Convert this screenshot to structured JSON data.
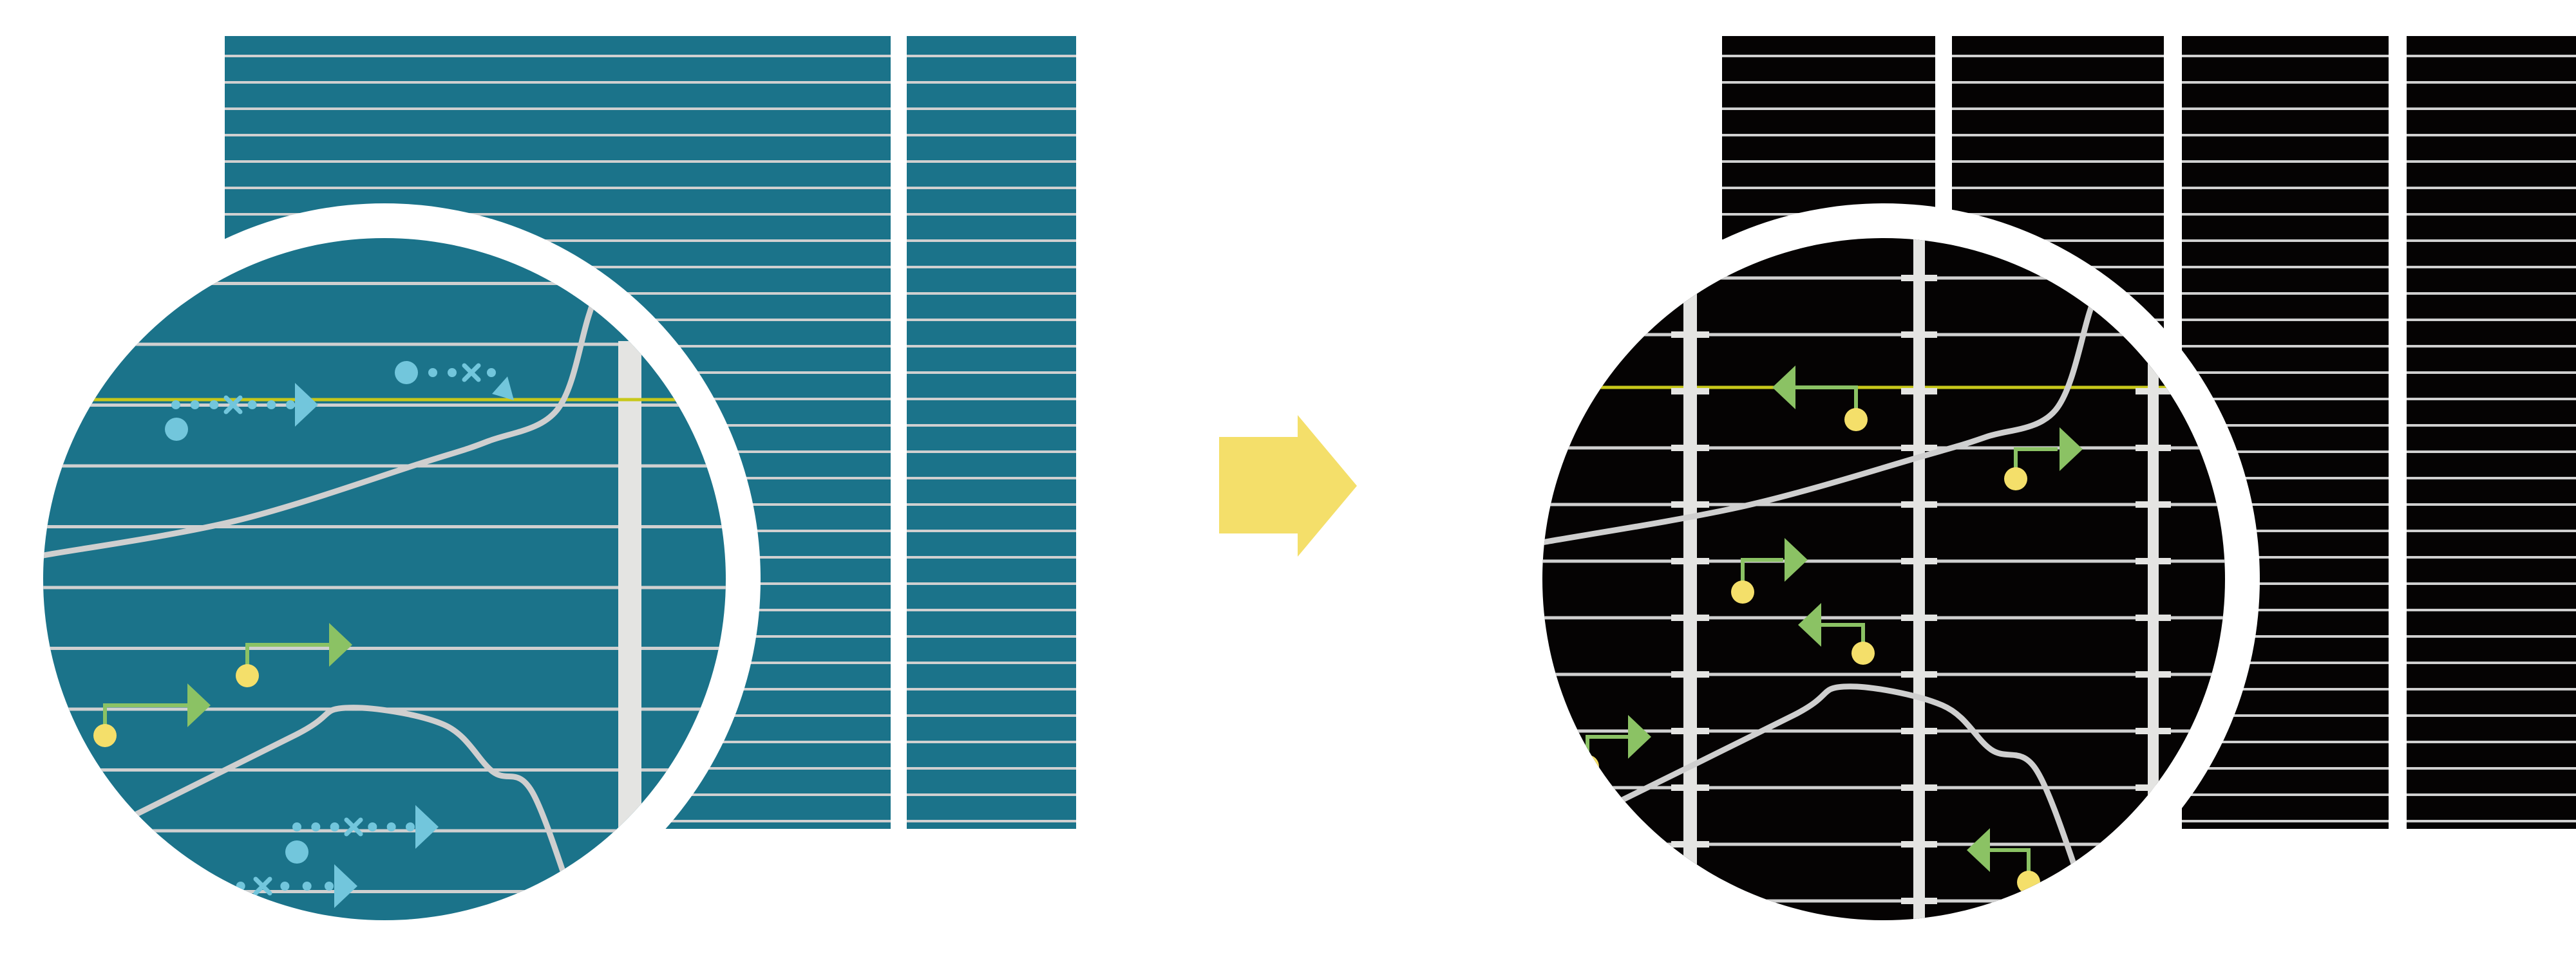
{
  "diagram": {
    "description_text": "",
    "colors": {
      "background": "#ffffff",
      "left_panel": "#1b738a",
      "right_panel": "#050303",
      "grid_line": "#d0d0d0",
      "highlight_line": "#c8c81a",
      "wall": "#e4e4e2",
      "blue_marker": "#72c6dc",
      "green_arrow": "#8bc264",
      "yellow_dot": "#f4df6a",
      "transition_arrow": "#f4df6a",
      "curve": "#cfcfcf"
    },
    "left_panel": {
      "icons": [
        "dotted-path-arrow",
        "branch-arrow"
      ]
    },
    "center": {
      "icon": "right-arrow"
    },
    "right_panel": {
      "icons": [
        "branch-arrow"
      ]
    }
  }
}
